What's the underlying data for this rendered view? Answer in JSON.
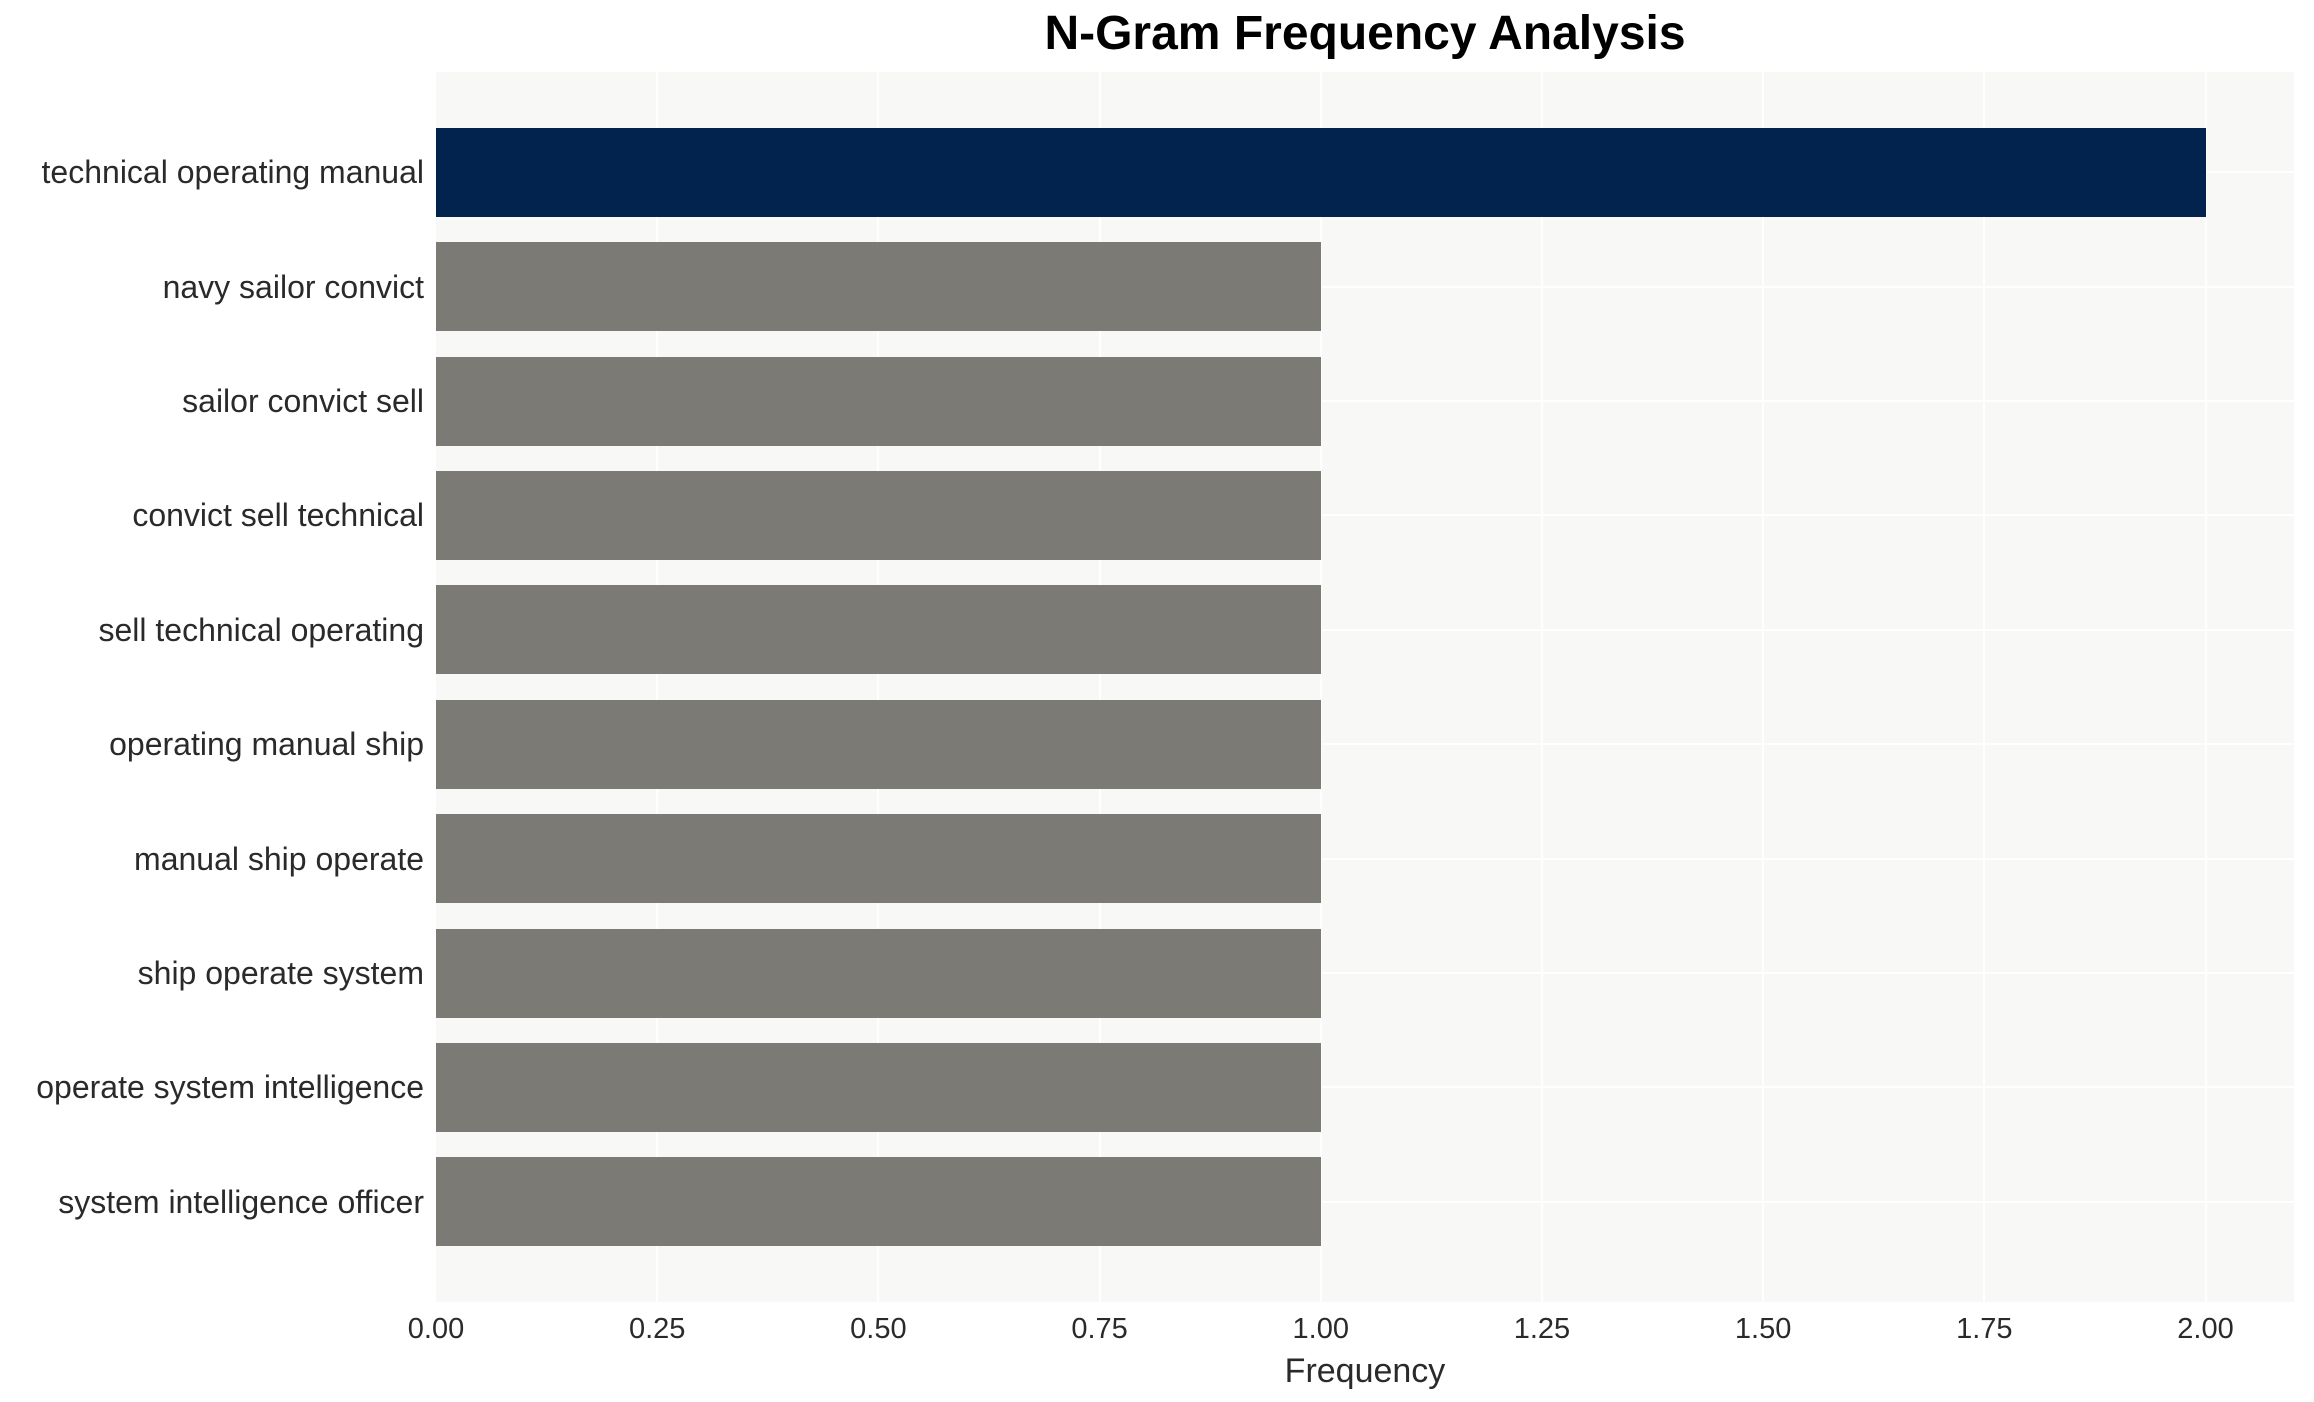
{
  "figure": {
    "background": "#ffffff",
    "plot_background": "#f8f8f7",
    "gridline_color": "#ffffff",
    "tick_text_color": "#2a2a2a",
    "title_color": "#000000"
  },
  "chart_data": {
    "type": "bar",
    "orientation": "horizontal",
    "title": "N-Gram Frequency Analysis",
    "xlabel": "Frequency",
    "ylabel": "",
    "categories": [
      "technical operating manual",
      "navy sailor convict",
      "sailor convict sell",
      "convict sell technical",
      "sell technical operating",
      "operating manual ship",
      "manual ship operate",
      "ship operate system",
      "operate system intelligence",
      "system intelligence officer"
    ],
    "values": [
      2,
      1,
      1,
      1,
      1,
      1,
      1,
      1,
      1,
      1
    ],
    "bar_colors": [
      "#02234d",
      "#7b7a75",
      "#7b7a75",
      "#7b7a75",
      "#7b7a75",
      "#7b7a75",
      "#7b7a75",
      "#7b7a75",
      "#7b7a75",
      "#7b7a75"
    ],
    "highlight_color": "#02234d",
    "base_color": "#7b7a75",
    "xlim": [
      0,
      2.1
    ],
    "xticks": [
      "0.00",
      "0.25",
      "0.50",
      "0.75",
      "1.00",
      "1.25",
      "1.50",
      "1.75",
      "2.00"
    ],
    "xtick_values": [
      0,
      0.25,
      0.5,
      0.75,
      1.0,
      1.25,
      1.5,
      1.75,
      2.0
    ],
    "grid": true,
    "legend": "none"
  }
}
